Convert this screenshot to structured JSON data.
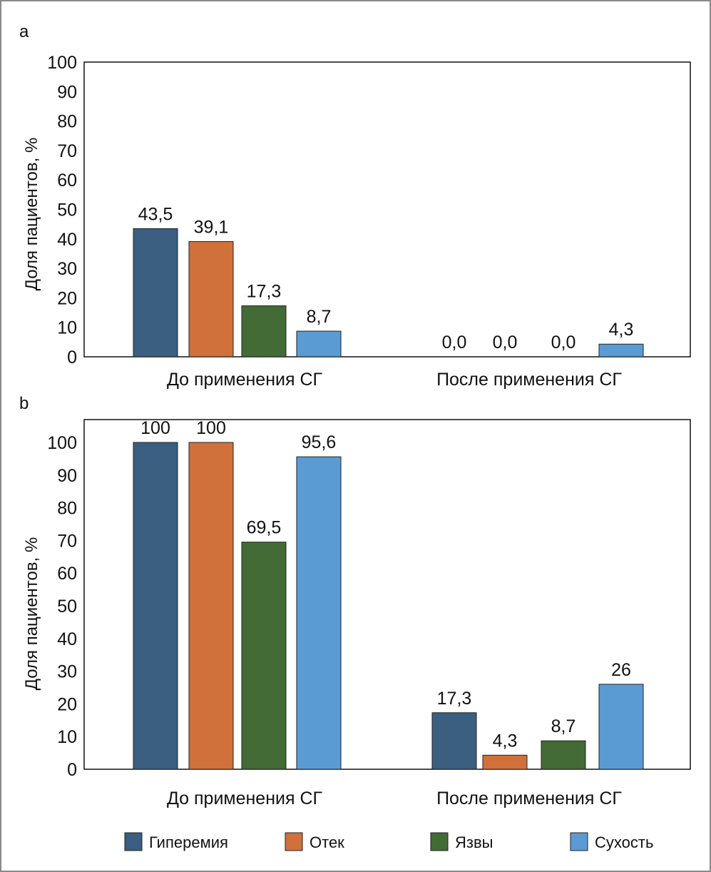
{
  "chart_data": [
    {
      "type": "bar",
      "panel_label": "a",
      "categories": [
        "До применения СГ",
        "После применения СГ"
      ],
      "series": [
        {
          "name": "Гиперемия",
          "values": [
            43.5,
            0.0
          ],
          "labels": [
            "43,5",
            "0,0"
          ]
        },
        {
          "name": "Отек",
          "values": [
            39.1,
            0.0
          ],
          "labels": [
            "39,1",
            "0,0"
          ]
        },
        {
          "name": "Язвы",
          "values": [
            17.3,
            0.0
          ],
          "labels": [
            "17,3",
            "0,0"
          ]
        },
        {
          "name": "Сухость",
          "values": [
            8.7,
            4.3
          ],
          "labels": [
            "8,7",
            "4,3"
          ]
        }
      ],
      "ylabel": "Доля пациентов, %",
      "ylim": [
        0,
        100
      ],
      "yticks": [
        "0",
        "10",
        "20",
        "30",
        "40",
        "50",
        "60",
        "70",
        "80",
        "90",
        "100"
      ],
      "grid": false
    },
    {
      "type": "bar",
      "panel_label": "b",
      "categories": [
        "До применения СГ",
        "После применения СГ"
      ],
      "series": [
        {
          "name": "Гиперемия",
          "values": [
            100,
            17.3
          ],
          "labels": [
            "100",
            "17,3"
          ]
        },
        {
          "name": "Отек",
          "values": [
            100,
            4.3
          ],
          "labels": [
            "100",
            "4,3"
          ]
        },
        {
          "name": "Язвы",
          "values": [
            69.5,
            8.7
          ],
          "labels": [
            "69,5",
            "8,7"
          ]
        },
        {
          "name": "Сухость",
          "values": [
            95.6,
            26
          ],
          "labels": [
            "95,6",
            "26"
          ]
        }
      ],
      "ylabel": "Доля пациентов, %",
      "ylim": [
        0,
        100
      ],
      "yticks": [
        "0",
        "10",
        "20",
        "30",
        "40",
        "50",
        "60",
        "70",
        "80",
        "90",
        "100"
      ],
      "grid": false
    }
  ],
  "legend": {
    "placement": "bottom",
    "items": [
      "Гиперемия",
      "Отек",
      "Язвы",
      "Сухость"
    ]
  },
  "colors": [
    "#3a5f80",
    "#d0703a",
    "#436b35",
    "#5a9bd4"
  ]
}
